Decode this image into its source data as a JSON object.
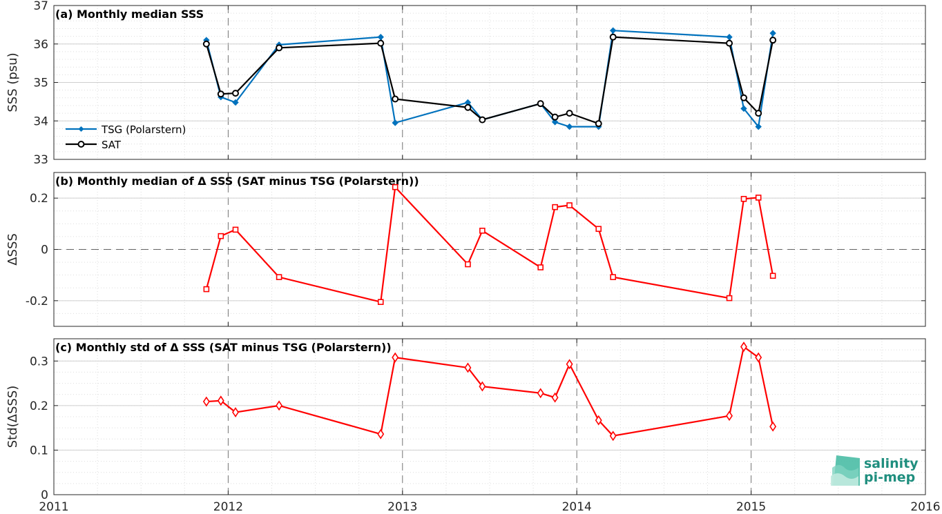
{
  "chart_data": [
    {
      "type": "line",
      "title": "(a) Monthly median SSS",
      "ylabel": "SSS (psu)",
      "xlim": [
        2011,
        2016
      ],
      "ylim": [
        33,
        37
      ],
      "x_ticks": [
        "2011",
        "2012",
        "2013",
        "2014",
        "2015",
        "2016"
      ],
      "y_ticks": [
        "33",
        "34",
        "35",
        "36",
        "37"
      ],
      "grid": true,
      "legend": "bottom-left",
      "x": [
        2011.875,
        2011.958,
        2012.042,
        2012.292,
        2012.875,
        2012.958,
        2013.375,
        2013.458,
        2013.792,
        2013.875,
        2013.958,
        2014.125,
        2014.208,
        2014.875,
        2014.958,
        2015.042,
        2015.125
      ],
      "series": [
        {
          "name": "TSG (Polarstern)",
          "color": "#0072bd",
          "marker": "filled-diamond",
          "values": [
            36.1,
            34.62,
            34.48,
            35.98,
            36.18,
            33.95,
            34.48,
            34.03,
            34.45,
            33.97,
            33.85,
            33.85,
            36.35,
            36.18,
            34.32,
            33.85,
            36.28
          ]
        },
        {
          "name": "SAT",
          "color": "#000000",
          "marker": "circle",
          "values": [
            36.0,
            34.7,
            34.72,
            35.9,
            36.02,
            34.57,
            34.35,
            34.03,
            34.45,
            34.1,
            34.2,
            33.93,
            36.18,
            36.02,
            34.6,
            34.2,
            36.1
          ]
        }
      ]
    },
    {
      "type": "line",
      "title": "(b) Monthly median of Δ SSS (SAT minus TSG (Polarstern))",
      "ylabel": "ΔSSS",
      "xlim": [
        2011,
        2016
      ],
      "ylim": [
        -0.3,
        0.3
      ],
      "x_ticks": [
        "2011",
        "2012",
        "2013",
        "2014",
        "2015",
        "2016"
      ],
      "y_ticks": [
        "-0.2",
        "0",
        "0.2"
      ],
      "grid": true,
      "zero_line": true,
      "x": [
        2011.875,
        2011.958,
        2012.042,
        2012.292,
        2012.875,
        2012.958,
        2013.375,
        2013.458,
        2013.792,
        2013.875,
        2013.958,
        2014.125,
        2014.208,
        2014.875,
        2014.958,
        2015.042,
        2015.125
      ],
      "series": [
        {
          "color": "#ff0000",
          "marker": "square",
          "values": [
            -0.155,
            0.052,
            0.077,
            -0.108,
            -0.205,
            0.243,
            -0.058,
            0.073,
            -0.07,
            0.165,
            0.172,
            0.08,
            -0.108,
            -0.19,
            0.197,
            0.202,
            -0.103
          ]
        }
      ]
    },
    {
      "type": "line",
      "title": "(c) Monthly std of Δ SSS (SAT minus TSG (Polarstern))",
      "ylabel": "Std(ΔSSS)",
      "xlim": [
        2011,
        2016
      ],
      "ylim": [
        0,
        0.35
      ],
      "x_ticks": [
        "2011",
        "2012",
        "2013",
        "2014",
        "2015",
        "2016"
      ],
      "y_ticks": [
        "0",
        "0.1",
        "0.2",
        "0.3"
      ],
      "grid": true,
      "x": [
        2011.875,
        2011.958,
        2012.042,
        2012.292,
        2012.875,
        2012.958,
        2013.375,
        2013.458,
        2013.792,
        2013.875,
        2013.958,
        2014.125,
        2014.208,
        2014.875,
        2014.958,
        2015.042,
        2015.125
      ],
      "series": [
        {
          "color": "#ff0000",
          "marker": "diamond",
          "values": [
            0.209,
            0.211,
            0.185,
            0.2,
            0.136,
            0.308,
            0.285,
            0.243,
            0.228,
            0.218,
            0.293,
            0.167,
            0.132,
            0.177,
            0.332,
            0.308,
            0.153
          ]
        }
      ]
    }
  ],
  "logo": {
    "line1": "salinity",
    "line2": "pi-mep"
  }
}
